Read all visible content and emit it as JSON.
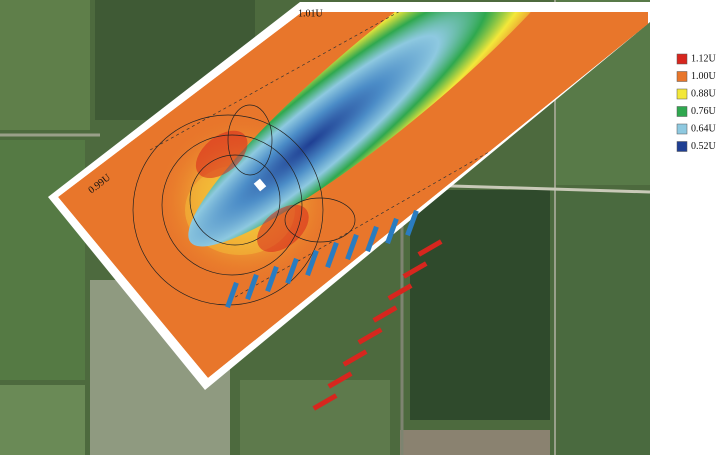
{
  "annotations": [
    {
      "label": "1.01U"
    },
    {
      "label": "0.99U"
    }
  ],
  "legend": [
    {
      "label": "1.12U",
      "color": "#d7261e"
    },
    {
      "label": "1.00U",
      "color": "#e8762b"
    },
    {
      "label": "0.88U",
      "color": "#f3e83a"
    },
    {
      "label": "0.76U",
      "color": "#2fa84f"
    },
    {
      "label": "0.64U",
      "color": "#8ec9e0"
    },
    {
      "label": "0.52U",
      "color": "#1f3f93"
    }
  ]
}
